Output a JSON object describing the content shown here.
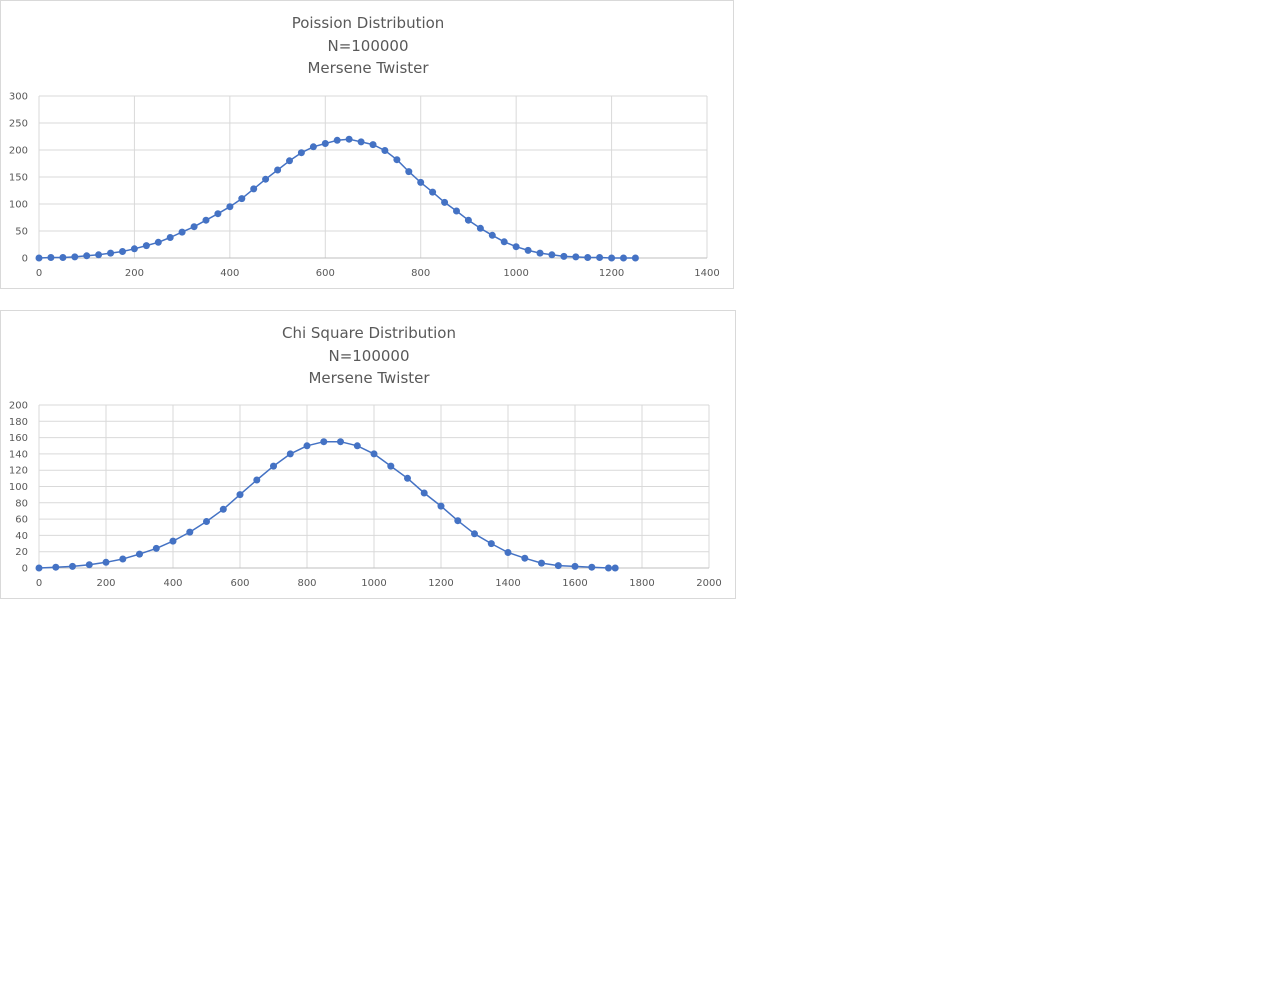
{
  "chart_data": [
    {
      "type": "line",
      "title": [
        "Poission Distribution",
        "N=100000",
        "Mersene Twister"
      ],
      "xlabel": "",
      "ylabel": "",
      "xlim": [
        0,
        1400
      ],
      "ylim": [
        0,
        300
      ],
      "x_ticks": [
        0,
        200,
        400,
        600,
        800,
        1000,
        1200,
        1400
      ],
      "y_ticks": [
        0,
        50,
        100,
        150,
        200,
        250,
        300
      ],
      "grid": true,
      "legend": "none",
      "markers": true,
      "color": "#4472C4",
      "series": [
        {
          "x": [
            0,
            25,
            50,
            75,
            100,
            125,
            150,
            175,
            200,
            225,
            250,
            275,
            300,
            325,
            350,
            375,
            400,
            425,
            450,
            475,
            500,
            525,
            550,
            575,
            600,
            625,
            650,
            675,
            700,
            725,
            750,
            775,
            800,
            825,
            850,
            875,
            900,
            925,
            950,
            975,
            1000,
            1025,
            1050,
            1075,
            1100,
            1125,
            1150,
            1175,
            1200,
            1225,
            1250
          ],
          "y": [
            0,
            1,
            1,
            2,
            4,
            6,
            9,
            12,
            17,
            23,
            29,
            38,
            48,
            58,
            70,
            82,
            95,
            110,
            128,
            146,
            163,
            180,
            195,
            206,
            212,
            218,
            220,
            215,
            210,
            199,
            182,
            160,
            140,
            122,
            103,
            87,
            70,
            55,
            42,
            30,
            21,
            14,
            9,
            6,
            3,
            2,
            1,
            1,
            0,
            0,
            0
          ]
        }
      ]
    },
    {
      "type": "line",
      "title": [
        "Chi Square Distribution",
        "N=100000",
        "Mersene Twister"
      ],
      "xlabel": "",
      "ylabel": "",
      "xlim": [
        0,
        2000
      ],
      "ylim": [
        0,
        200
      ],
      "x_ticks": [
        0,
        200,
        400,
        600,
        800,
        1000,
        1200,
        1400,
        1600,
        1800,
        2000
      ],
      "y_ticks": [
        0,
        20,
        40,
        60,
        80,
        100,
        120,
        140,
        160,
        180,
        200
      ],
      "grid": true,
      "legend": "none",
      "markers": true,
      "color": "#4472C4",
      "series": [
        {
          "x": [
            0,
            50,
            100,
            150,
            200,
            250,
            300,
            350,
            400,
            450,
            500,
            550,
            600,
            650,
            700,
            750,
            800,
            850,
            900,
            950,
            1000,
            1050,
            1100,
            1150,
            1200,
            1250,
            1300,
            1350,
            1400,
            1450,
            1500,
            1550,
            1600,
            1650,
            1700,
            1720
          ],
          "y": [
            0,
            1,
            2,
            4,
            7,
            11,
            17,
            24,
            33,
            44,
            57,
            72,
            90,
            108,
            125,
            140,
            150,
            155,
            155,
            150,
            140,
            125,
            110,
            92,
            76,
            58,
            42,
            30,
            19,
            12,
            6,
            3,
            2,
            1,
            0,
            0
          ]
        }
      ]
    }
  ]
}
